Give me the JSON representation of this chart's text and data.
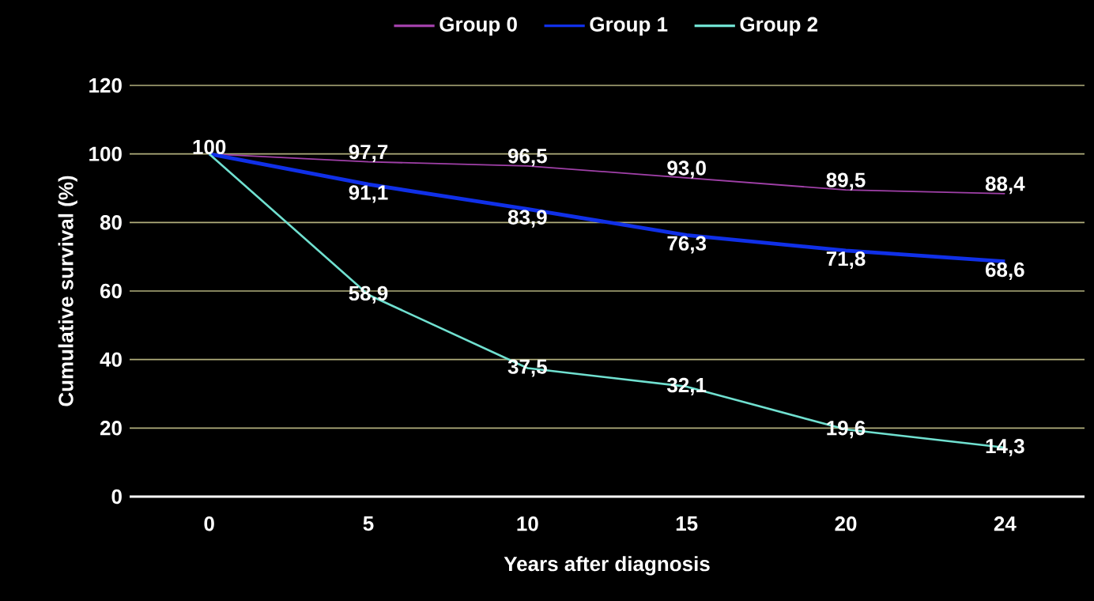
{
  "chart_data": {
    "type": "line",
    "xlabel": "Years after diagnosis",
    "ylabel": "Cumulative survival (%)",
    "categories": [
      "0",
      "5",
      "10",
      "15",
      "20",
      "24"
    ],
    "series": [
      {
        "name": "Group 0",
        "color": "#a040a8",
        "values": [
          100,
          97.7,
          96.5,
          93.0,
          89.5,
          88.4
        ],
        "value_labels": [
          "100",
          "97,7",
          "96,5",
          "93,0",
          "89,5",
          "88,4"
        ]
      },
      {
        "name": "Group 1",
        "color": "#1030e8",
        "values": [
          100,
          91.1,
          83.9,
          76.3,
          71.8,
          68.6
        ],
        "value_labels": [
          null,
          "91,1",
          "83,9",
          "76,3",
          "71,8",
          "68,6"
        ]
      },
      {
        "name": "Group 2",
        "color": "#70e0d0",
        "values": [
          100,
          58.9,
          37.5,
          32.1,
          19.6,
          14.3
        ],
        "value_labels": [
          null,
          "58,9",
          "37,5",
          "32,1",
          "19,6",
          "14,3"
        ]
      }
    ],
    "ylim": [
      0,
      120
    ],
    "yticks": [
      0,
      20,
      40,
      60,
      80,
      100,
      120
    ],
    "grid": "y",
    "legend": "top",
    "marker": "none",
    "line_style": "solid"
  }
}
